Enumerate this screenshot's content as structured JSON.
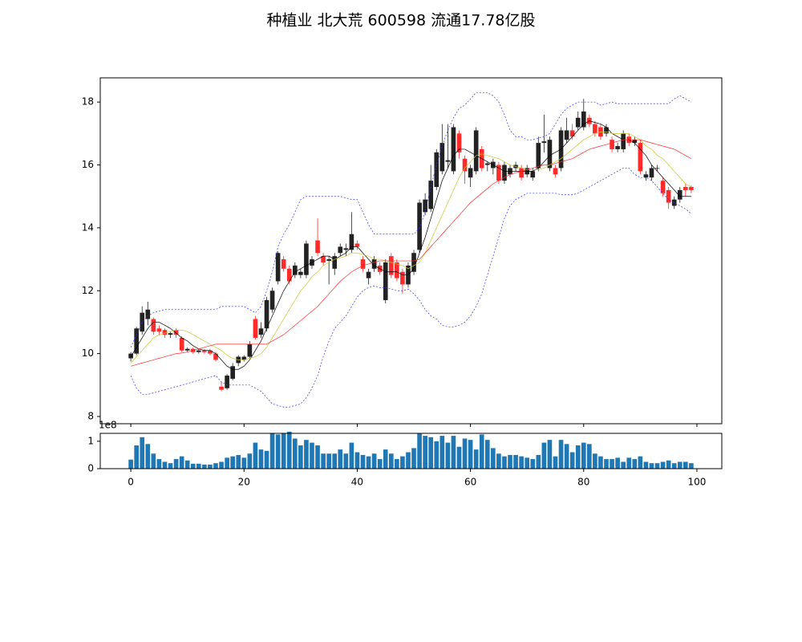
{
  "chart_data": [
    {
      "type": "candlestick",
      "title": "种植业 北大荒 600598 流通17.78亿股",
      "x": [
        0,
        1,
        2,
        3,
        4,
        5,
        6,
        7,
        8,
        9,
        10,
        11,
        12,
        13,
        14,
        15,
        16,
        17,
        18,
        19,
        20,
        21,
        22,
        23,
        24,
        25,
        26,
        27,
        28,
        29,
        30,
        31,
        32,
        33,
        34,
        35,
        36,
        37,
        38,
        39,
        40,
        41,
        42,
        43,
        44,
        45,
        46,
        47,
        48,
        49,
        50,
        51,
        52,
        53,
        54,
        55,
        56,
        57,
        58,
        59,
        60,
        61,
        62,
        63,
        64,
        65,
        66,
        67,
        68,
        69,
        70,
        71,
        72,
        73,
        74,
        75,
        76,
        77,
        78,
        79,
        80,
        81,
        82,
        83,
        84,
        85,
        86,
        87,
        88,
        89,
        90,
        91,
        92,
        93,
        94,
        95,
        96,
        97,
        98,
        99
      ],
      "open": [
        9.85,
        10.0,
        10.7,
        11.1,
        11.1,
        10.8,
        10.75,
        10.6,
        10.75,
        10.5,
        10.1,
        10.15,
        10.05,
        10.1,
        10.1,
        10.0,
        8.95,
        8.9,
        9.2,
        9.7,
        9.8,
        9.9,
        11.1,
        10.6,
        10.8,
        11.4,
        12.3,
        13.0,
        12.7,
        12.5,
        12.5,
        12.5,
        12.8,
        13.6,
        13.1,
        12.95,
        12.7,
        13.2,
        13.3,
        13.3,
        13.5,
        13.0,
        12.4,
        12.7,
        12.8,
        11.7,
        13.1,
        12.9,
        12.6,
        12.2,
        12.6,
        13.3,
        14.5,
        14.6,
        15.3,
        15.8,
        16.1,
        15.8,
        17.0,
        16.2,
        15.6,
        15.8,
        16.5,
        16.0,
        15.9,
        16.0,
        15.5,
        15.7,
        15.9,
        15.9,
        15.7,
        15.6,
        15.9,
        16.7,
        15.9,
        15.9,
        15.9,
        16.8,
        17.1,
        17.2,
        17.2,
        17.5,
        17.3,
        17.2,
        17.0,
        16.8,
        16.5,
        16.5,
        16.9,
        16.7,
        16.7,
        15.6,
        15.6,
        15.9,
        15.5,
        15.2,
        14.7,
        14.9,
        15.3,
        15.3
      ],
      "high": [
        10.05,
        10.85,
        11.5,
        11.65,
        11.15,
        10.9,
        10.8,
        10.7,
        10.8,
        10.55,
        10.2,
        10.2,
        10.15,
        10.15,
        10.15,
        10.05,
        9.1,
        9.35,
        9.7,
        9.95,
        9.95,
        10.4,
        11.2,
        11.0,
        11.8,
        12.1,
        13.25,
        13.1,
        12.8,
        12.9,
        12.7,
        13.6,
        13.1,
        14.3,
        13.2,
        13.1,
        13.2,
        13.5,
        13.5,
        14.5,
        13.6,
        13.1,
        12.7,
        13.1,
        12.9,
        13.0,
        13.2,
        13.0,
        12.7,
        12.9,
        13.3,
        14.9,
        15.1,
        16.0,
        16.5,
        17.3,
        17.3,
        17.3,
        17.1,
        16.3,
        16.0,
        17.2,
        16.6,
        16.1,
        16.2,
        16.1,
        16.1,
        16.0,
        16.1,
        16.0,
        16.0,
        15.9,
        16.9,
        17.6,
        16.9,
        16.0,
        17.2,
        17.5,
        17.3,
        17.7,
        18.1,
        17.6,
        17.4,
        17.3,
        17.3,
        16.9,
        16.7,
        17.1,
        17.0,
        16.9,
        16.8,
        15.8,
        16.0,
        16.0,
        15.6,
        15.3,
        15.0,
        15.3,
        15.4,
        15.35
      ],
      "low": [
        9.75,
        9.95,
        10.6,
        10.9,
        10.6,
        10.6,
        10.5,
        10.5,
        10.5,
        10.05,
        10.05,
        10.0,
        10.0,
        10.0,
        9.95,
        9.75,
        8.8,
        8.85,
        9.15,
        9.6,
        9.75,
        9.85,
        10.45,
        10.5,
        10.7,
        11.3,
        12.2,
        12.6,
        12.2,
        12.4,
        12.4,
        12.4,
        12.7,
        13.1,
        12.8,
        12.2,
        12.5,
        13.1,
        13.1,
        13.2,
        13.3,
        12.6,
        12.2,
        12.6,
        12.5,
        11.6,
        12.4,
        12.3,
        11.9,
        12.1,
        12.5,
        13.2,
        14.4,
        14.5,
        15.2,
        15.7,
        15.9,
        15.7,
        16.2,
        15.4,
        15.3,
        15.7,
        15.8,
        15.8,
        15.7,
        15.4,
        15.4,
        15.6,
        15.8,
        15.5,
        15.6,
        15.5,
        15.8,
        16.4,
        15.8,
        15.6,
        15.8,
        16.7,
        16.8,
        17.1,
        17.1,
        17.2,
        16.9,
        16.8,
        16.9,
        16.4,
        16.4,
        16.4,
        16.6,
        16.6,
        15.7,
        15.5,
        15.5,
        15.8,
        15.0,
        14.6,
        14.6,
        14.8,
        15.0,
        15.1
      ],
      "close": [
        10.0,
        10.8,
        11.3,
        11.4,
        10.7,
        10.7,
        10.6,
        10.65,
        10.6,
        10.1,
        10.15,
        10.05,
        10.1,
        10.05,
        10.0,
        9.8,
        8.85,
        9.3,
        9.6,
        9.9,
        9.9,
        10.3,
        10.5,
        10.8,
        11.7,
        12.0,
        13.2,
        12.7,
        12.3,
        12.8,
        12.6,
        13.5,
        13.0,
        13.2,
        12.9,
        13.0,
        13.1,
        13.4,
        13.35,
        13.8,
        13.4,
        12.7,
        12.6,
        13.0,
        12.6,
        12.9,
        12.5,
        12.4,
        12.2,
        12.8,
        13.2,
        14.8,
        14.9,
        15.5,
        16.4,
        16.7,
        16.15,
        17.2,
        16.4,
        15.8,
        15.9,
        17.1,
        15.9,
        16.05,
        16.1,
        15.5,
        16.0,
        15.9,
        16.0,
        15.6,
        15.9,
        15.8,
        16.7,
        16.75,
        16.8,
        15.7,
        17.1,
        17.1,
        16.9,
        17.5,
        17.7,
        17.3,
        17.0,
        16.9,
        17.2,
        16.5,
        16.6,
        17.0,
        16.7,
        16.8,
        15.8,
        15.7,
        15.9,
        15.9,
        15.1,
        14.8,
        14.9,
        15.2,
        15.2,
        15.2
      ],
      "up_color": "#222222",
      "down_color": "#ff2a2a",
      "lines": [
        {
          "color": "#000000",
          "dashed": false,
          "values": [
            9.9,
            10.2,
            10.5,
            10.8,
            11.0,
            11.0,
            10.9,
            10.8,
            10.65,
            10.5,
            10.4,
            10.25,
            10.15,
            10.1,
            10.1,
            10.0,
            9.8,
            9.6,
            9.5,
            9.5,
            9.6,
            9.8,
            10.1,
            10.4,
            10.8,
            11.2,
            11.6,
            12.0,
            12.3,
            12.6,
            12.7,
            12.8,
            12.9,
            13.0,
            13.1,
            13.1,
            13.0,
            13.1,
            13.2,
            13.4,
            13.4,
            13.2,
            13.0,
            12.8,
            12.7,
            12.6,
            12.6,
            12.6,
            12.5,
            12.5,
            12.7,
            13.2,
            13.7,
            14.3,
            14.9,
            15.5,
            15.9,
            16.3,
            16.5,
            16.5,
            16.4,
            16.3,
            16.2,
            16.1,
            16.0,
            15.9,
            15.8,
            15.8,
            15.8,
            15.8,
            15.8,
            15.8,
            15.9,
            16.1,
            16.3,
            16.4,
            16.5,
            16.7,
            16.9,
            17.1,
            17.3,
            17.4,
            17.35,
            17.3,
            17.2,
            17.0,
            16.9,
            16.8,
            16.8,
            16.7,
            16.5,
            16.3,
            16.0,
            15.8,
            15.6,
            15.4,
            15.2,
            15.0,
            15.0,
            15.0
          ]
        },
        {
          "color": "#c8c832",
          "dashed": false,
          "values": [
            9.7,
            9.9,
            10.1,
            10.3,
            10.5,
            10.6,
            10.65,
            10.7,
            10.75,
            10.75,
            10.7,
            10.6,
            10.5,
            10.4,
            10.3,
            10.2,
            10.1,
            9.95,
            9.85,
            9.8,
            9.8,
            9.85,
            9.9,
            10.0,
            10.2,
            10.5,
            10.8,
            11.1,
            11.4,
            11.7,
            12.0,
            12.2,
            12.45,
            12.6,
            12.8,
            12.9,
            13.0,
            13.05,
            13.1,
            13.2,
            13.2,
            13.15,
            13.1,
            13.0,
            13.0,
            12.95,
            12.9,
            12.85,
            12.8,
            12.7,
            12.8,
            12.9,
            13.2,
            13.6,
            14.0,
            14.4,
            14.8,
            15.2,
            15.6,
            15.9,
            16.1,
            16.3,
            16.35,
            16.3,
            16.25,
            16.2,
            16.1,
            16.0,
            15.95,
            15.9,
            15.85,
            15.85,
            15.85,
            15.9,
            16.0,
            16.1,
            16.2,
            16.35,
            16.5,
            16.65,
            16.8,
            16.9,
            17.0,
            17.05,
            17.05,
            17.0,
            17.0,
            17.0,
            17.0,
            16.9,
            16.8,
            16.6,
            16.5,
            16.3,
            16.2,
            16.0,
            15.8,
            15.6,
            15.4,
            15.3
          ]
        },
        {
          "color": "#ff2a2a",
          "dashed": false,
          "values": [
            9.6,
            9.65,
            9.7,
            9.75,
            9.8,
            9.85,
            9.9,
            9.95,
            10.0,
            10.02,
            10.05,
            10.1,
            10.15,
            10.2,
            10.25,
            10.3,
            10.3,
            10.3,
            10.3,
            10.3,
            10.3,
            10.3,
            10.3,
            10.3,
            10.3,
            10.4,
            10.5,
            10.6,
            10.75,
            10.9,
            11.05,
            11.2,
            11.35,
            11.5,
            11.7,
            11.9,
            12.1,
            12.3,
            12.45,
            12.6,
            12.7,
            12.8,
            12.85,
            12.9,
            12.95,
            12.95,
            12.95,
            12.95,
            12.95,
            12.95,
            12.95,
            13.0,
            13.2,
            13.4,
            13.6,
            13.8,
            14.0,
            14.2,
            14.4,
            14.6,
            14.8,
            14.95,
            15.1,
            15.25,
            15.4,
            15.5,
            15.6,
            15.7,
            15.75,
            15.8,
            15.85,
            15.9,
            15.95,
            16.0,
            16.0,
            16.05,
            16.1,
            16.15,
            16.2,
            16.3,
            16.4,
            16.5,
            16.55,
            16.6,
            16.65,
            16.7,
            16.75,
            16.8,
            16.8,
            16.8,
            16.8,
            16.75,
            16.7,
            16.65,
            16.6,
            16.55,
            16.5,
            16.4,
            16.3,
            16.2
          ]
        },
        {
          "color": "#3333ff",
          "dashed": true,
          "values": [
            10.2,
            10.6,
            11.0,
            11.2,
            11.3,
            11.35,
            11.4,
            11.4,
            11.4,
            11.4,
            11.4,
            11.4,
            11.4,
            11.4,
            11.4,
            11.4,
            11.5,
            11.5,
            11.5,
            11.5,
            11.5,
            11.4,
            11.3,
            11.5,
            12.0,
            12.6,
            13.4,
            13.8,
            14.1,
            14.5,
            14.9,
            15.0,
            15.0,
            15.0,
            15.0,
            15.0,
            15.0,
            15.0,
            14.95,
            14.9,
            14.9,
            14.5,
            14.1,
            13.8,
            13.8,
            13.8,
            13.8,
            13.8,
            13.8,
            13.8,
            13.8,
            14.0,
            14.5,
            15.3,
            16.0,
            16.6,
            17.1,
            17.5,
            17.8,
            17.9,
            18.1,
            18.3,
            18.3,
            18.3,
            18.2,
            18.0,
            17.6,
            17.1,
            16.9,
            16.9,
            16.8,
            16.8,
            16.85,
            16.9,
            17.0,
            17.3,
            17.6,
            17.8,
            17.9,
            18.0,
            18.0,
            18.0,
            18.0,
            17.9,
            17.95,
            18.0,
            17.95,
            17.95,
            17.95,
            17.95,
            17.95,
            17.95,
            17.95,
            17.95,
            17.95,
            17.95,
            18.1,
            18.2,
            18.1,
            18.0
          ]
        },
        {
          "color": "#3333ff",
          "dashed": true,
          "values": [
            9.3,
            8.9,
            8.7,
            8.7,
            8.75,
            8.8,
            8.85,
            8.9,
            8.95,
            9.0,
            9.05,
            9.1,
            9.15,
            9.2,
            9.25,
            9.3,
            9.1,
            9.0,
            9.0,
            9.0,
            9.0,
            9.0,
            8.9,
            8.8,
            8.6,
            8.4,
            8.35,
            8.3,
            8.3,
            8.35,
            8.4,
            8.6,
            8.9,
            9.3,
            9.9,
            10.4,
            10.8,
            11.0,
            11.2,
            11.5,
            11.8,
            12.0,
            12.1,
            12.15,
            12.1,
            12.1,
            12.05,
            12.0,
            12.0,
            12.05,
            11.9,
            11.7,
            11.4,
            11.2,
            11.1,
            10.9,
            10.85,
            10.85,
            10.9,
            11.0,
            11.2,
            11.5,
            11.9,
            12.5,
            13.1,
            13.7,
            14.3,
            14.7,
            14.9,
            15.0,
            15.1,
            15.1,
            15.1,
            15.1,
            15.1,
            15.1,
            15.05,
            15.05,
            15.05,
            15.1,
            15.2,
            15.3,
            15.4,
            15.5,
            15.6,
            15.7,
            15.8,
            15.9,
            15.9,
            15.7,
            15.6,
            15.6,
            15.5,
            15.3,
            15.1,
            14.9,
            14.8,
            14.7,
            14.6,
            14.45
          ]
        }
      ],
      "xlim": [
        -5.4,
        104.4
      ],
      "ylim": [
        7.77,
        18.77
      ],
      "yticks": [
        8,
        10,
        12,
        14,
        16,
        18
      ]
    },
    {
      "type": "bar",
      "offset_label": "1e8",
      "color": "#1f77b4",
      "x": [
        0,
        1,
        2,
        3,
        4,
        5,
        6,
        7,
        8,
        9,
        10,
        11,
        12,
        13,
        14,
        15,
        16,
        17,
        18,
        19,
        20,
        21,
        22,
        23,
        24,
        25,
        26,
        27,
        28,
        29,
        30,
        31,
        32,
        33,
        34,
        35,
        36,
        37,
        38,
        39,
        40,
        41,
        42,
        43,
        44,
        45,
        46,
        47,
        48,
        49,
        50,
        51,
        52,
        53,
        54,
        55,
        56,
        57,
        58,
        59,
        60,
        61,
        62,
        63,
        64,
        65,
        66,
        67,
        68,
        69,
        70,
        71,
        72,
        73,
        74,
        75,
        76,
        77,
        78,
        79,
        80,
        81,
        82,
        83,
        84,
        85,
        86,
        87,
        88,
        89,
        90,
        91,
        92,
        93,
        94,
        95,
        96,
        97,
        98,
        99
      ],
      "values": [
        0.33,
        0.85,
        1.15,
        0.9,
        0.55,
        0.35,
        0.25,
        0.2,
        0.35,
        0.45,
        0.3,
        0.18,
        0.18,
        0.15,
        0.15,
        0.2,
        0.25,
        0.4,
        0.45,
        0.5,
        0.4,
        0.55,
        0.95,
        0.7,
        0.65,
        1.3,
        1.25,
        1.3,
        1.35,
        1.1,
        0.85,
        1.05,
        0.95,
        0.85,
        0.55,
        0.55,
        0.55,
        0.7,
        0.55,
        0.95,
        0.6,
        0.5,
        0.45,
        0.55,
        0.35,
        0.7,
        0.55,
        0.35,
        0.45,
        0.6,
        0.75,
        1.3,
        1.2,
        1.15,
        1.0,
        1.2,
        0.95,
        1.2,
        0.8,
        1.1,
        1.05,
        0.7,
        1.25,
        1.05,
        0.75,
        0.55,
        0.45,
        0.5,
        0.5,
        0.45,
        0.4,
        0.35,
        0.5,
        0.95,
        1.05,
        0.45,
        1.05,
        0.9,
        0.6,
        0.85,
        0.95,
        0.9,
        0.55,
        0.45,
        0.35,
        0.35,
        0.4,
        0.25,
        0.4,
        0.35,
        0.45,
        0.25,
        0.2,
        0.2,
        0.25,
        0.3,
        0.2,
        0.25,
        0.25,
        0.2
      ],
      "xlim": [
        -5.4,
        104.4
      ],
      "ylim": [
        0,
        1.29
      ],
      "yticks": [
        0,
        1
      ],
      "xticks": [
        0,
        20,
        40,
        60,
        80,
        100
      ]
    }
  ]
}
